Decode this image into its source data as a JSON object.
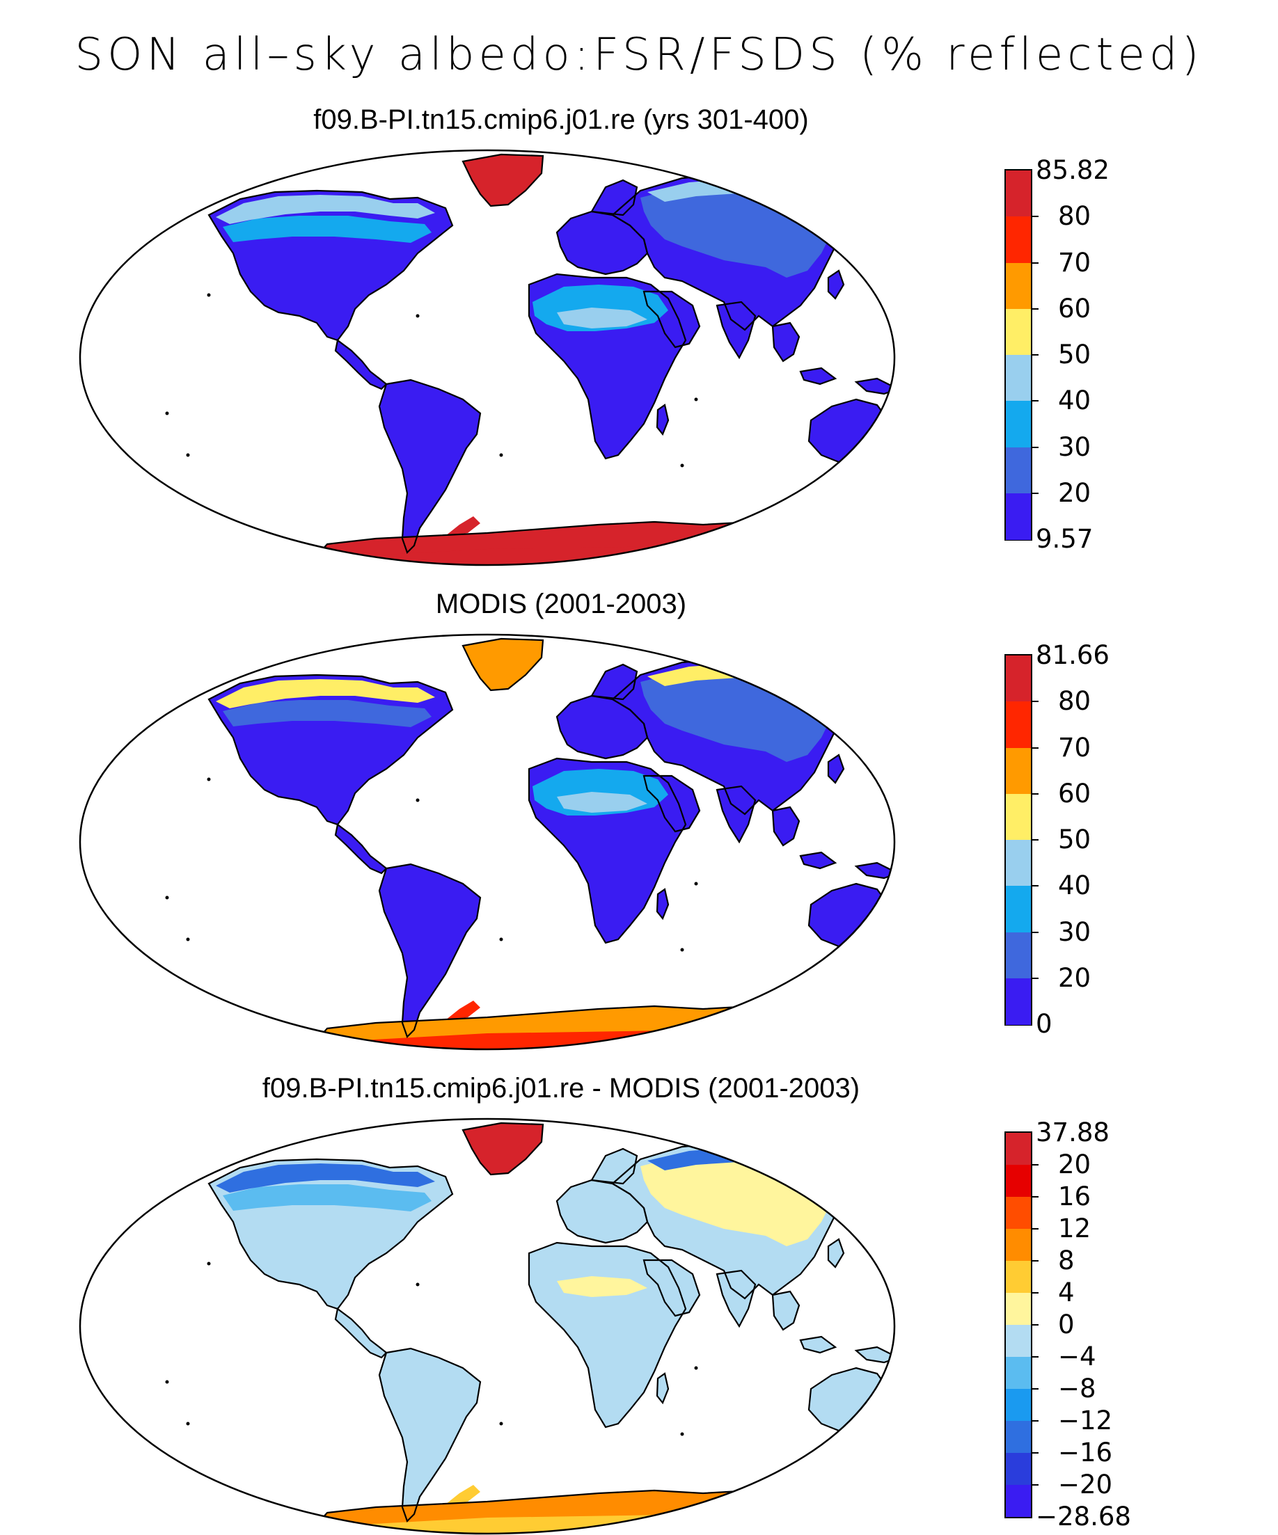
{
  "title": "SON all–sky albedo:FSR/FSDS (% reflected)",
  "panels": [
    {
      "id": "model",
      "title": "f09.B-PI.tn15.cmip6.j01.re (yrs 301-400)",
      "colorbar": {
        "labels": [
          "85.82",
          "80",
          "70",
          "60",
          "50",
          "40",
          "30",
          "20",
          "9.57"
        ],
        "colors": [
          "#d6232b",
          "#ff2600",
          "#ff9a00",
          "#ffee66",
          "#99cfee",
          "#14a9ee",
          "#3f68dd",
          "#3a1cf2"
        ]
      },
      "regions": {
        "land": "#3a1cf2",
        "desert": "#14a9ee",
        "desert_light": "#99cfee",
        "siberia": "#3f68dd",
        "boreal": "#14a9ee",
        "tundra": "#99cfee",
        "greenland": "#d6232b",
        "antarctica": "#d6232b",
        "antarctica_edge": "#d6232b"
      }
    },
    {
      "id": "obs",
      "title": "MODIS (2001-2003)",
      "colorbar": {
        "labels": [
          "81.66",
          "80",
          "70",
          "60",
          "50",
          "40",
          "30",
          "20",
          "0"
        ],
        "colors": [
          "#d6232b",
          "#ff2600",
          "#ff9a00",
          "#ffee66",
          "#99cfee",
          "#14a9ee",
          "#3f68dd",
          "#3a1cf2"
        ]
      },
      "regions": {
        "land": "#3a1cf2",
        "desert": "#14a9ee",
        "desert_light": "#99cfee",
        "siberia": "#3f68dd",
        "boreal": "#3f68dd",
        "tundra": "#ffee66",
        "greenland": "#ff9a00",
        "antarctica": "#ff2600",
        "antarctica_edge": "#ff9a00"
      }
    },
    {
      "id": "diff",
      "title": "f09.B-PI.tn15.cmip6.j01.re - MODIS (2001-2003)",
      "colorbar": {
        "labels": [
          "37.88",
          "20",
          "16",
          "12",
          "8",
          "4",
          "0",
          "−4",
          "−8",
          "−12",
          "−16",
          "−20",
          "−28.68"
        ],
        "colors": [
          "#d6232b",
          "#e60000",
          "#ff4d00",
          "#ff8c00",
          "#ffcc33",
          "#fff59d",
          "#b3dcf2",
          "#5bbcf0",
          "#1a9af0",
          "#2f6fe0",
          "#2a3ddc",
          "#3a1cf2"
        ]
      },
      "regions": {
        "land": "#b3dcf2",
        "desert": "#b3dcf2",
        "desert_light": "#fff59d",
        "siberia": "#fff59d",
        "boreal": "#5bbcf0",
        "tundra": "#2f6fe0",
        "greenland": "#d6232b",
        "antarctica": "#ffcc33",
        "antarctica_edge": "#ff8c00"
      }
    }
  ]
}
